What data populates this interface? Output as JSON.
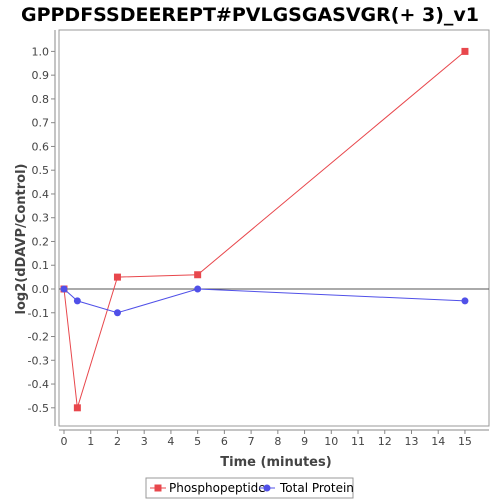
{
  "chart_data": {
    "type": "line",
    "title": "GPPDFSSDEEREPT#PVLGSGASVGR(+ 3)_v1",
    "xlabel": "Time (minutes)",
    "ylabel": "log2(dDAVP/Control)",
    "xlim": [
      0,
      15.8
    ],
    "ylim": [
      -0.6,
      1.07
    ],
    "xticks": [
      0,
      1,
      2,
      3,
      4,
      5,
      6,
      7,
      8,
      9,
      10,
      11,
      12,
      13,
      14,
      15
    ],
    "yticks": [
      -0.5,
      -0.4,
      -0.3,
      -0.2,
      -0.1,
      0.0,
      0.1,
      0.2,
      0.3,
      0.4,
      0.5,
      0.6,
      0.7,
      0.8,
      0.9,
      1.0
    ],
    "grid": false,
    "legend_position": "bottom",
    "series": [
      {
        "name": "Phosphopeptide",
        "color": "#e8474c",
        "marker": "square",
        "x": [
          0,
          0.5,
          2,
          5,
          15
        ],
        "y": [
          0.0,
          -0.5,
          0.05,
          0.06,
          1.0
        ]
      },
      {
        "name": "Total Protein",
        "color": "#5050e8",
        "marker": "circle",
        "x": [
          0,
          0.5,
          2,
          5,
          15
        ],
        "y": [
          0.0,
          -0.05,
          -0.1,
          0.0,
          -0.05
        ]
      }
    ]
  }
}
